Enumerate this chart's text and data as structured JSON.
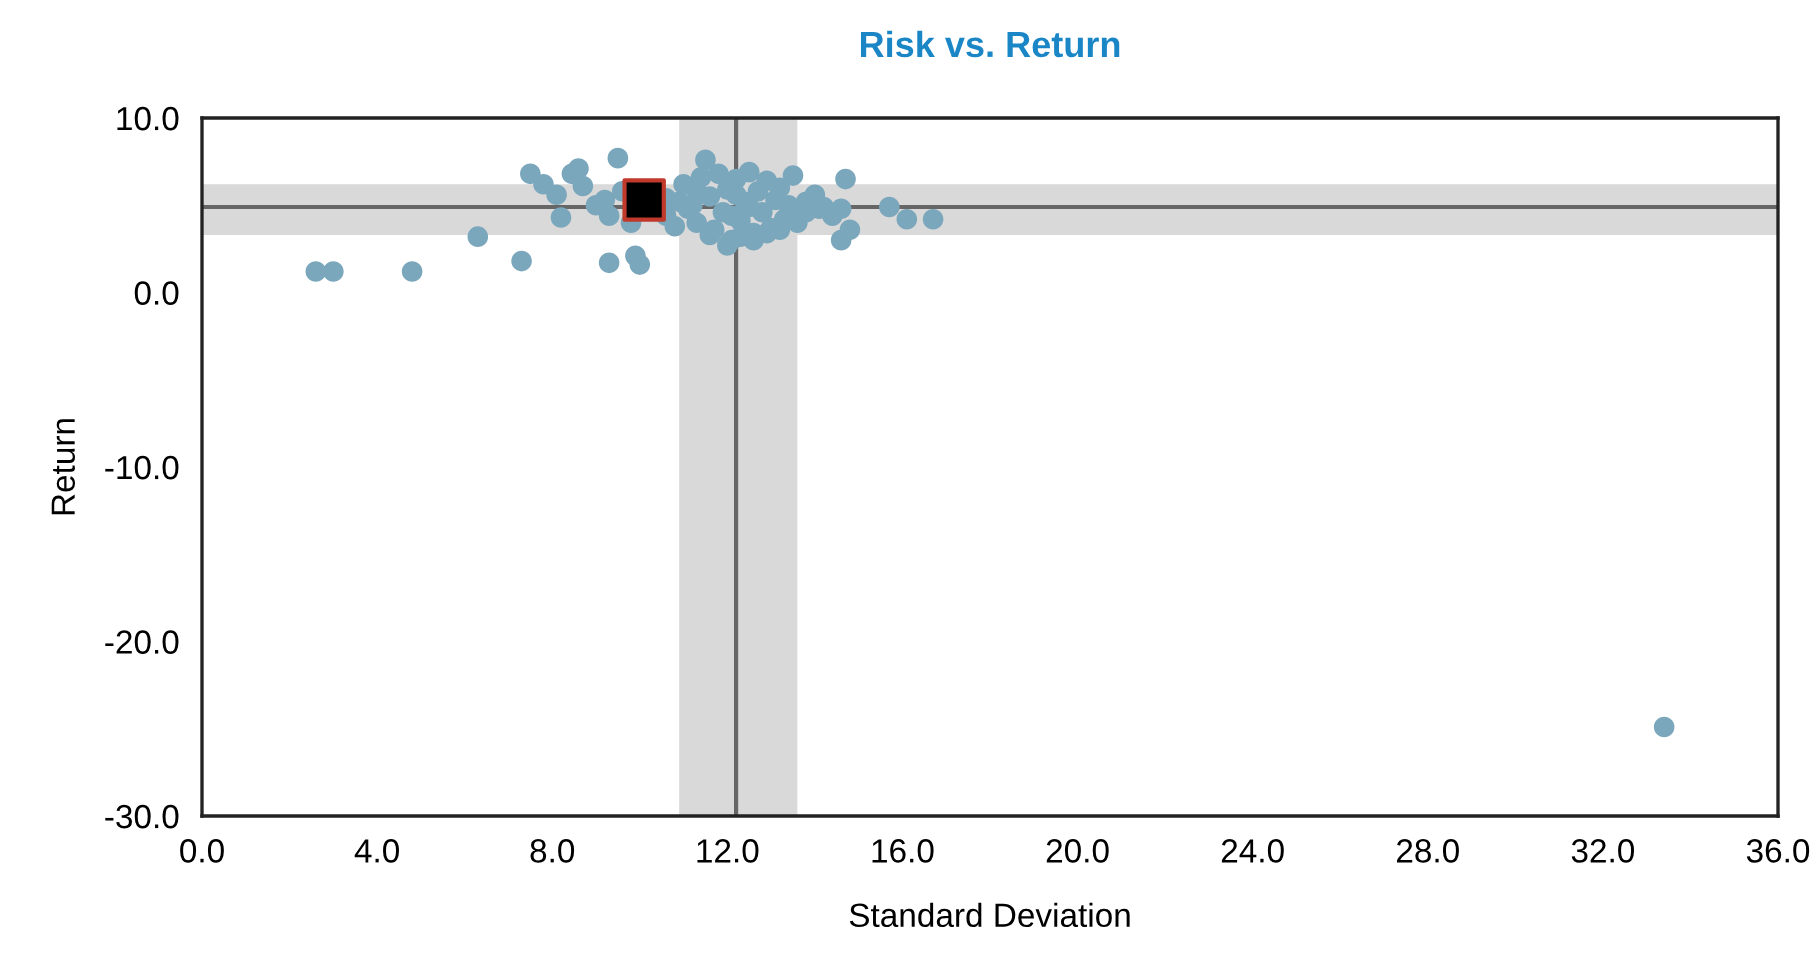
{
  "chart_data": {
    "type": "scatter",
    "title": "Risk vs. Return",
    "xlabel": "Standard Deviation",
    "ylabel": "Return",
    "xlim": [
      0,
      36
    ],
    "xticks": [
      {
        "value": 0,
        "label": "0.0"
      },
      {
        "value": 4,
        "label": "4.0"
      },
      {
        "value": 8,
        "label": "8.0"
      },
      {
        "value": 12,
        "label": "12.0"
      },
      {
        "value": 16,
        "label": "16.0"
      },
      {
        "value": 20,
        "label": "20.0"
      },
      {
        "value": 24,
        "label": "24.0"
      },
      {
        "value": 28,
        "label": "28.0"
      },
      {
        "value": 32,
        "label": "32.0"
      },
      {
        "value": 36,
        "label": "36.0"
      }
    ],
    "ylim": [
      -30,
      10
    ],
    "yticks": [
      {
        "value": -30,
        "label": "-30.0"
      },
      {
        "value": -20,
        "label": "-20.0"
      },
      {
        "value": -10,
        "label": "-10.0"
      },
      {
        "value": 0,
        "label": "0.0"
      },
      {
        "value": 10,
        "label": "10.0"
      }
    ],
    "grid": false,
    "bands": [
      {
        "axis": "x",
        "from": 10.9,
        "to": 13.6,
        "color": "#d9d9d9"
      },
      {
        "axis": "y",
        "from": 3.3,
        "to": 6.2,
        "color": "#d9d9d9"
      }
    ],
    "ref_lines": [
      {
        "axis": "x",
        "value": 12.2,
        "color": "#666666"
      },
      {
        "axis": "y",
        "value": 4.9,
        "color": "#666666"
      }
    ],
    "series": [
      {
        "color": "#7ba7bc",
        "marker": "circle",
        "x": [
          2.6,
          3.0,
          4.8,
          6.3,
          7.3,
          7.5,
          7.8,
          8.1,
          8.2,
          8.45,
          8.6,
          8.7,
          9.0,
          9.3,
          9.3,
          9.5,
          9.6,
          9.9,
          10.0,
          9.2,
          9.8,
          10.4,
          10.6,
          10.8,
          10.9,
          11.0,
          11.2,
          11.3,
          11.5,
          11.6,
          11.7,
          11.8,
          11.9,
          12.0,
          12.1,
          12.2,
          12.3,
          12.4,
          12.5,
          12.6,
          12.7,
          12.8,
          12.9,
          13.0,
          13.1,
          13.2,
          13.3,
          13.4,
          13.5,
          13.6,
          13.8,
          14.0,
          14.2,
          14.4,
          11.4,
          11.6,
          12.0,
          12.3,
          12.6,
          12.9,
          13.2,
          10.6,
          11.1,
          12.1,
          12.5,
          13.8,
          14.1,
          11.3,
          12.2,
          14.6,
          14.7,
          14.8,
          14.6,
          15.7,
          16.1,
          16.7,
          33.4
        ],
        "values": [
          1.2,
          1.2,
          1.2,
          3.2,
          1.8,
          6.8,
          6.2,
          5.6,
          4.3,
          6.8,
          7.1,
          6.1,
          5.0,
          1.7,
          4.4,
          7.7,
          5.8,
          2.1,
          1.6,
          5.3,
          4.0,
          null,
          4.4,
          3.8,
          5.2,
          6.2,
          5.0,
          4.0,
          7.6,
          5.5,
          3.6,
          6.8,
          4.6,
          5.9,
          3.0,
          6.5,
          4.1,
          5.2,
          6.9,
          3.4,
          5.8,
          4.6,
          6.4,
          3.7,
          5.3,
          6.0,
          4.2,
          5.0,
          6.7,
          4.0,
          4.6,
          5.6,
          4.9,
          4.4,
          6.6,
          3.3,
          2.7,
          3.2,
          3.0,
          3.4,
          3.6,
          5.4,
          4.8,
          4.4,
          4.9,
          5.2,
          4.8,
          5.8,
          5.6,
          4.8,
          6.5,
          3.6,
          3.0,
          4.9,
          4.2,
          4.2,
          -24.9
        ]
      },
      {
        "color": "#000000",
        "marker": "square",
        "x": [
          10.1
        ],
        "values": [
          5.3
        ]
      }
    ]
  }
}
